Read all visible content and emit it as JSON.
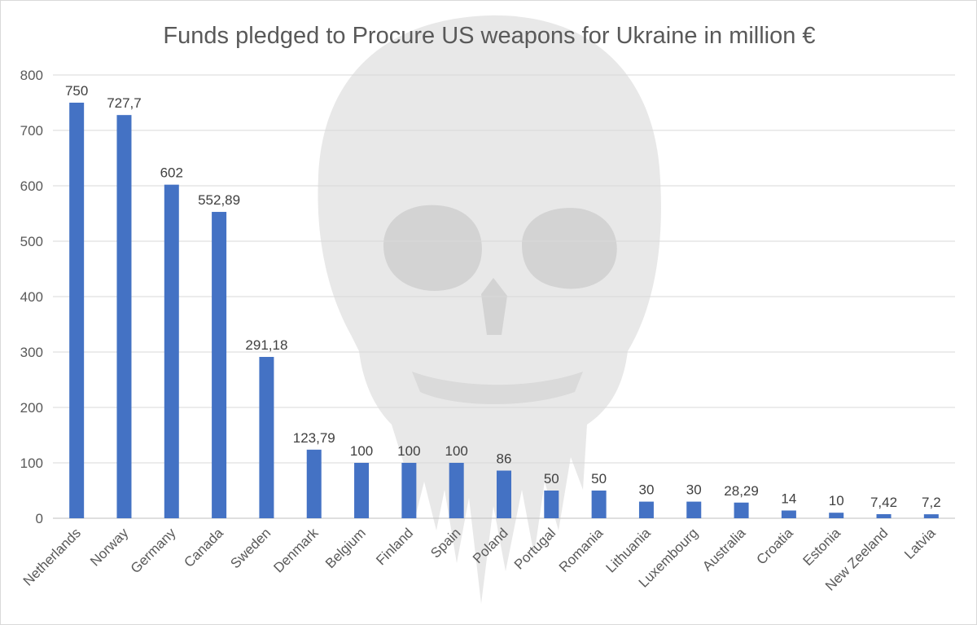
{
  "chart_data": {
    "type": "bar",
    "title": "Funds pledged to Procure US weapons for Ukraine in million €",
    "categories": [
      "Netherlands",
      "Norway",
      "Germany",
      "Canada",
      "Sweden",
      "Denmark",
      "Belgium",
      "Finland",
      "Spain",
      "Poland",
      "Portugal",
      "Romania",
      "Lithuania",
      "Luxembourg",
      "Australia",
      "Croatia",
      "Estonia",
      "New Zeeland",
      "Latvia"
    ],
    "values": [
      750,
      727.7,
      602,
      552.89,
      291.18,
      123.79,
      100,
      100,
      100,
      86,
      50,
      50,
      30,
      30,
      28.29,
      14,
      10,
      7.42,
      7.2
    ],
    "data_labels": [
      "750",
      "727,7",
      "602",
      "552,89",
      "291,18",
      "123,79",
      "100",
      "100",
      "100",
      "86",
      "50",
      "50",
      "30",
      "30",
      "28,29",
      "14",
      "10",
      "7,42",
      "7,2"
    ],
    "yticks": [
      "0",
      "100",
      "200",
      "300",
      "400",
      "500",
      "600",
      "700",
      "800"
    ],
    "ylim": [
      0,
      800
    ],
    "grid": true,
    "legend": "none",
    "bar_color": "#4472c4",
    "watermark": "skull-icon"
  }
}
